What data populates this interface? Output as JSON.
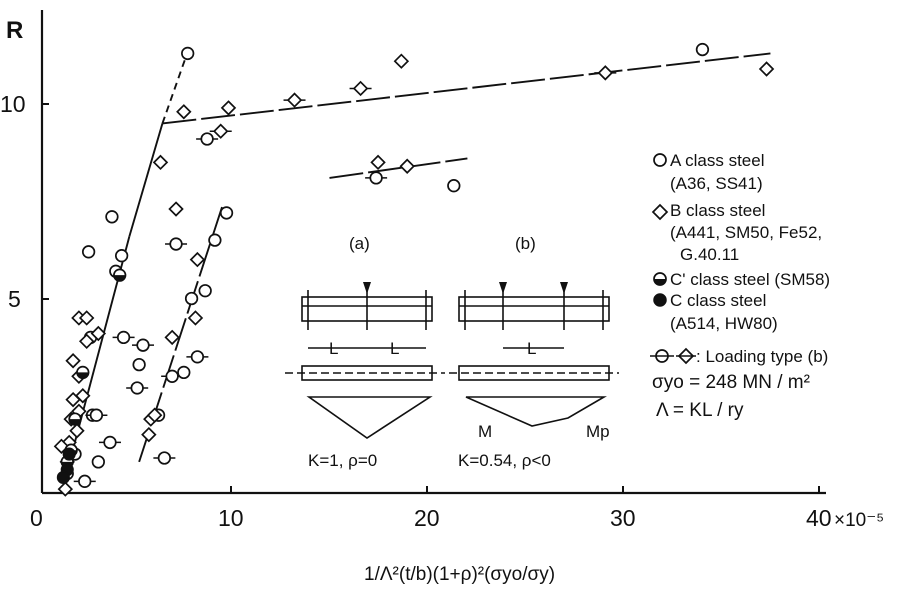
{
  "chart_data": {
    "type": "scatter",
    "xlabel": "1/Λ²(t/b)(1+ρ)²(σyo/σy)",
    "ylabel": "R",
    "x_scale_note": "×10⁻⁵",
    "xlim": [
      0,
      40
    ],
    "ylim": [
      0,
      12
    ],
    "x_ticks": [
      "0",
      "10",
      "20",
      "30",
      "40"
    ],
    "y_ticks": [
      "5",
      "10"
    ],
    "grid": false,
    "legend_position": "right",
    "legend": {
      "a_class": "A class steel",
      "a_class_sub": "(A36, SS41)",
      "b_class": "B class steel",
      "b_class_sub1": "(A441, SM50, Fe52,",
      "b_class_sub2": "G.40.11",
      "c_prime_class": "C' class steel (SM58)",
      "c_class": "C class steel",
      "c_class_sub": "(A514, HW80)",
      "loading_type": ": Loading type (b)",
      "sigma_yo": "σyo = 248 MN / m²",
      "lambda_def": "Λ = KL / ry"
    },
    "insets": {
      "a": {
        "title": "(a)",
        "L1": "L",
        "L2": "L",
        "caption": "K=1, ρ=0"
      },
      "b": {
        "title": "(b)",
        "L1": "L",
        "M": "M",
        "Mp": "Mp",
        "caption": "K=0.54,   ρ<0"
      }
    },
    "series": [
      {
        "name": "A class steel",
        "marker": "circle",
        "points": [
          {
            "x": 7.5,
            "y": 11.3
          },
          {
            "x": 34.0,
            "y": 11.4
          },
          {
            "x": 17.2,
            "y": 8.1,
            "b": true
          },
          {
            "x": 21.2,
            "y": 7.9
          },
          {
            "x": 9.5,
            "y": 7.2
          },
          {
            "x": 3.6,
            "y": 7.1
          },
          {
            "x": 2.4,
            "y": 6.2
          },
          {
            "x": 4.1,
            "y": 6.1
          },
          {
            "x": 3.8,
            "y": 5.7
          },
          {
            "x": 6.9,
            "y": 6.4,
            "b": true
          },
          {
            "x": 8.9,
            "y": 6.5
          },
          {
            "x": 8.5,
            "y": 9.1,
            "b": true
          },
          {
            "x": 7.7,
            "y": 5.0
          },
          {
            "x": 8.4,
            "y": 5.2
          },
          {
            "x": 2.5,
            "y": 4.0
          },
          {
            "x": 4.2,
            "y": 4.0,
            "b": true
          },
          {
            "x": 5.2,
            "y": 3.8,
            "b": true
          },
          {
            "x": 5.0,
            "y": 3.3
          },
          {
            "x": 4.9,
            "y": 2.7,
            "b": true
          },
          {
            "x": 6.7,
            "y": 3.0,
            "b": true
          },
          {
            "x": 7.3,
            "y": 3.1
          },
          {
            "x": 8.0,
            "y": 3.5,
            "b": true
          },
          {
            "x": 2.6,
            "y": 2.0
          },
          {
            "x": 2.8,
            "y": 2.0,
            "b": true
          },
          {
            "x": 6.0,
            "y": 2.0
          },
          {
            "x": 3.5,
            "y": 1.3,
            "b": true
          },
          {
            "x": 2.9,
            "y": 0.8
          },
          {
            "x": 1.7,
            "y": 1.0
          },
          {
            "x": 2.2,
            "y": 0.3,
            "b": true
          },
          {
            "x": 1.3,
            "y": 0.5
          },
          {
            "x": 6.3,
            "y": 0.9,
            "b": true
          }
        ]
      },
      {
        "name": "B class steel",
        "marker": "diamond",
        "points": [
          {
            "x": 37.3,
            "y": 10.9
          },
          {
            "x": 29.0,
            "y": 10.8,
            "b": true
          },
          {
            "x": 18.5,
            "y": 11.1
          },
          {
            "x": 16.4,
            "y": 10.4,
            "b": true
          },
          {
            "x": 13.0,
            "y": 10.1,
            "b": true
          },
          {
            "x": 9.6,
            "y": 9.9
          },
          {
            "x": 7.3,
            "y": 9.8
          },
          {
            "x": 9.2,
            "y": 9.3,
            "b": true
          },
          {
            "x": 6.1,
            "y": 8.5
          },
          {
            "x": 17.3,
            "y": 8.5
          },
          {
            "x": 18.8,
            "y": 8.4
          },
          {
            "x": 6.9,
            "y": 7.3
          },
          {
            "x": 8.0,
            "y": 6.0
          },
          {
            "x": 7.9,
            "y": 4.5
          },
          {
            "x": 6.7,
            "y": 4.0
          },
          {
            "x": 1.9,
            "y": 4.5
          },
          {
            "x": 2.3,
            "y": 4.5
          },
          {
            "x": 2.9,
            "y": 4.1
          },
          {
            "x": 2.3,
            "y": 3.9
          },
          {
            "x": 1.6,
            "y": 3.4
          },
          {
            "x": 1.9,
            "y": 3.0
          },
          {
            "x": 2.1,
            "y": 2.5
          },
          {
            "x": 1.6,
            "y": 2.4
          },
          {
            "x": 1.9,
            "y": 2.1
          },
          {
            "x": 1.5,
            "y": 1.9
          },
          {
            "x": 1.8,
            "y": 1.6
          },
          {
            "x": 1.4,
            "y": 1.3
          },
          {
            "x": 1.0,
            "y": 1.2
          },
          {
            "x": 1.3,
            "y": 0.8
          },
          {
            "x": 1.2,
            "y": 0.1
          },
          {
            "x": 5.5,
            "y": 1.5
          },
          {
            "x": 5.6,
            "y": 1.9
          },
          {
            "x": 5.8,
            "y": 2.0
          }
        ]
      },
      {
        "name": "C' class steel (SM58)",
        "marker": "half-circle",
        "points": [
          {
            "x": 4.0,
            "y": 5.6
          },
          {
            "x": 2.1,
            "y": 3.1
          },
          {
            "x": 1.7,
            "y": 1.9
          },
          {
            "x": 1.5,
            "y": 1.1
          },
          {
            "x": 1.3,
            "y": 0.8
          }
        ]
      },
      {
        "name": "C class steel (A514, HW80)",
        "marker": "filled-circle",
        "points": [
          {
            "x": 1.4,
            "y": 1.0
          },
          {
            "x": 1.3,
            "y": 0.6
          },
          {
            "x": 1.1,
            "y": 0.4
          }
        ]
      }
    ],
    "fit_lines": [
      {
        "points": [
          [
            1.0,
            0.0
          ],
          [
            4.5,
            6.6
          ]
        ],
        "style": "solid"
      },
      {
        "points": [
          [
            4.5,
            6.6
          ],
          [
            6.2,
            9.5
          ]
        ],
        "style": "solid"
      },
      {
        "points": [
          [
            6.2,
            9.5
          ],
          [
            7.4,
            11.2
          ]
        ],
        "style": "dashed"
      },
      {
        "points": [
          [
            6.2,
            9.5
          ],
          [
            37.5,
            11.3
          ]
        ],
        "style": "long-dash"
      },
      {
        "points": [
          [
            5.0,
            0.8
          ],
          [
            9.3,
            7.4
          ]
        ],
        "style": "long-dash"
      },
      {
        "points": [
          [
            14.8,
            8.1
          ],
          [
            21.9,
            8.6
          ]
        ],
        "style": "long-dash"
      }
    ]
  }
}
